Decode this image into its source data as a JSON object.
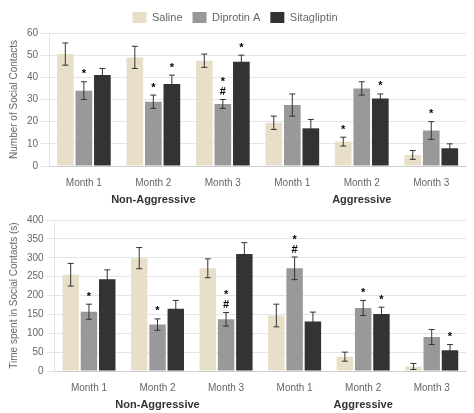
{
  "chart_data": [
    {
      "type": "bar",
      "ylabel": "Number of Social Contacts",
      "groups": [
        "Non-Aggressive",
        "Aggressive"
      ],
      "categories": [
        "Month 1",
        "Month 2",
        "Month 3",
        "Month 1",
        "Month 2",
        "Month 3"
      ],
      "series": [
        {
          "name": "Saline",
          "color": "#e8dfc8",
          "values": [
            50.5,
            49.0,
            47.5,
            19.5,
            11.0,
            5.0
          ],
          "errors": [
            5.0,
            5.0,
            3.0,
            3.0,
            2.0,
            2.0
          ]
        },
        {
          "name": "Diprotin A",
          "color": "#999999",
          "values": [
            34.0,
            29.0,
            28.0,
            27.5,
            35.0,
            16.0
          ],
          "errors": [
            4.0,
            3.0,
            2.0,
            5.0,
            3.0,
            4.0
          ]
        },
        {
          "name": "Sitagliptin",
          "color": "#333333",
          "values": [
            41.0,
            37.0,
            47.0,
            17.0,
            30.5,
            8.0
          ],
          "errors": [
            3.0,
            4.0,
            3.0,
            4.0,
            2.0,
            2.0
          ]
        }
      ],
      "ylim": [
        0,
        60
      ],
      "yticks": [
        0,
        10,
        20,
        30,
        40,
        50,
        60
      ],
      "grid": true,
      "legend": "top",
      "annotations": [
        {
          "text": "*",
          "series": "Diprotin A",
          "group": "Non-Aggressive",
          "category": "Month 1"
        },
        {
          "text": "*",
          "series": "Diprotin A",
          "group": "Non-Aggressive",
          "category": "Month 2"
        },
        {
          "text": "*",
          "series": "Sitagliptin",
          "group": "Non-Aggressive",
          "category": "Month 2"
        },
        {
          "text": "#",
          "series": "Diprotin A",
          "group": "Non-Aggressive",
          "category": "Month 3"
        },
        {
          "text": "*",
          "series": "Diprotin A",
          "group": "Non-Aggressive",
          "category": "Month 3"
        },
        {
          "text": "*",
          "series": "Sitagliptin",
          "group": "Non-Aggressive",
          "category": "Month 3"
        },
        {
          "text": "*",
          "series": "Saline",
          "group": "Aggressive",
          "category": "Month 2"
        },
        {
          "text": "*",
          "series": "Sitagliptin",
          "group": "Aggressive",
          "category": "Month 2"
        },
        {
          "text": "*",
          "series": "Diprotin A",
          "group": "Aggressive",
          "category": "Month 3"
        }
      ]
    },
    {
      "type": "bar",
      "ylabel": "Time spent in Social Contacts (s)",
      "groups": [
        "Non-Aggressive",
        "Aggressive"
      ],
      "categories": [
        "Month 1",
        "Month 2",
        "Month 3",
        "Month 1",
        "Month 2",
        "Month 3"
      ],
      "series": [
        {
          "name": "Saline",
          "color": "#e8dfc8",
          "values": [
            255,
            299,
            272,
            147,
            38,
            12
          ],
          "errors": [
            30,
            28,
            25,
            30,
            12,
            8
          ]
        },
        {
          "name": "Diprotin A",
          "color": "#999999",
          "values": [
            157,
            123,
            137,
            272,
            167,
            90
          ],
          "errors": [
            20,
            15,
            18,
            30,
            20,
            20
          ]
        },
        {
          "name": "Sitagliptin",
          "color": "#333333",
          "values": [
            243,
            165,
            310,
            131,
            151,
            55
          ],
          "errors": [
            25,
            22,
            30,
            25,
            18,
            15
          ]
        }
      ],
      "ylim": [
        0,
        400
      ],
      "yticks": [
        0,
        50,
        100,
        150,
        200,
        250,
        300,
        350,
        400
      ],
      "grid": true,
      "annotations": [
        {
          "text": "*",
          "series": "Diprotin A",
          "group": "Non-Aggressive",
          "category": "Month 1"
        },
        {
          "text": "*",
          "series": "Diprotin A",
          "group": "Non-Aggressive",
          "category": "Month 2"
        },
        {
          "text": "#",
          "series": "Diprotin A",
          "group": "Non-Aggressive",
          "category": "Month 3"
        },
        {
          "text": "*",
          "series": "Diprotin A",
          "group": "Non-Aggressive",
          "category": "Month 3"
        },
        {
          "text": "#",
          "series": "Diprotin A",
          "group": "Aggressive",
          "category": "Month 1"
        },
        {
          "text": "*",
          "series": "Diprotin A",
          "group": "Aggressive",
          "category": "Month 1"
        },
        {
          "text": "*",
          "series": "Diprotin A",
          "group": "Aggressive",
          "category": "Month 2"
        },
        {
          "text": "*",
          "series": "Sitagliptin",
          "group": "Aggressive",
          "category": "Month 2"
        },
        {
          "text": "*",
          "series": "Sitagliptin",
          "group": "Aggressive",
          "category": "Month 3"
        }
      ]
    }
  ]
}
